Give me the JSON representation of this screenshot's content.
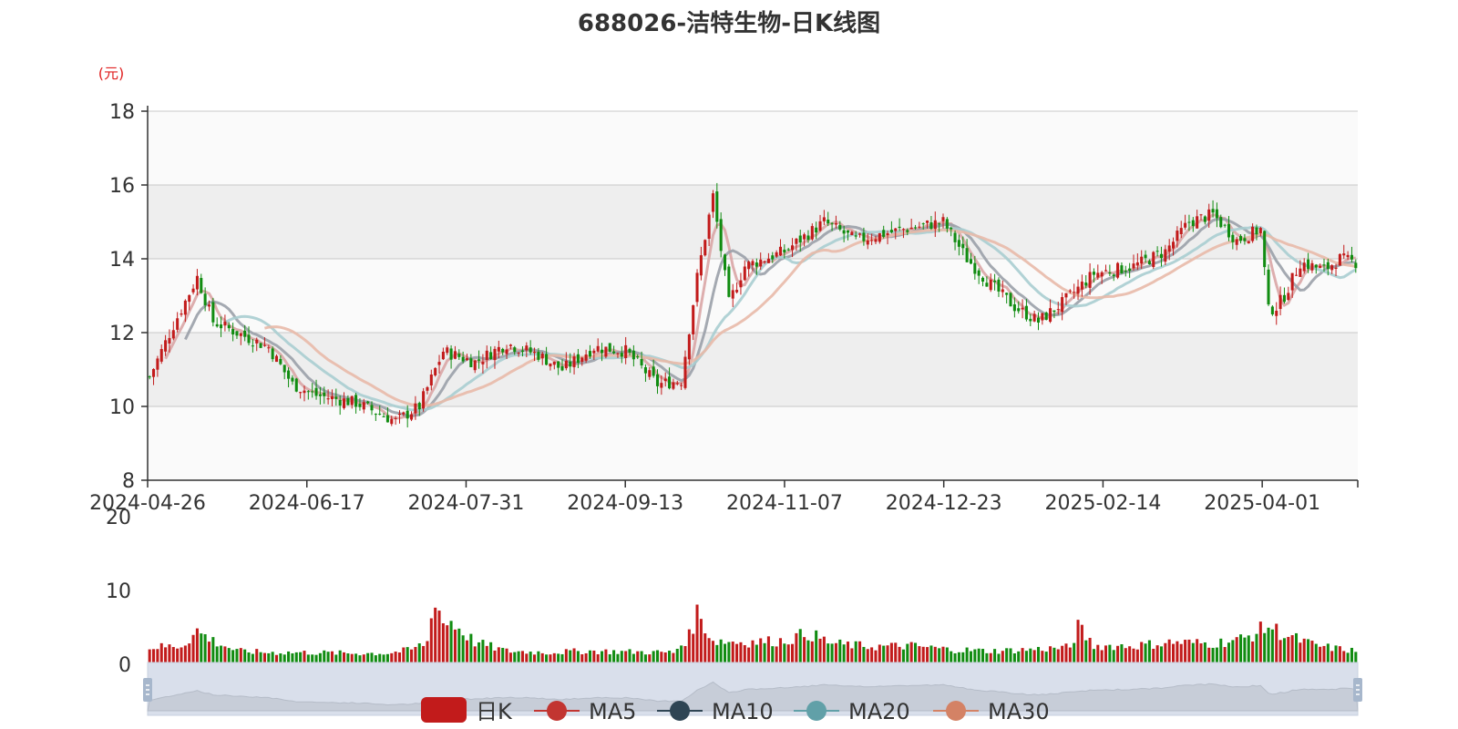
{
  "chart_data": {
    "type": "candlestick",
    "title": "688026-洁特生物-日K线图",
    "ylabel": "(元)",
    "price_axis": {
      "ylim": [
        8,
        18
      ],
      "ticks": [
        8,
        10,
        12,
        14,
        16,
        18
      ]
    },
    "volume_axis": {
      "ylim": [
        0,
        20
      ],
      "ticks": [
        0,
        10,
        20
      ]
    },
    "x_tick_labels": [
      "2024-04-26",
      "2024-06-17",
      "2024-07-31",
      "2024-09-13",
      "2024-11-07",
      "2024-12-23",
      "2025-02-14",
      "2025-04-01"
    ],
    "legend": [
      {
        "name": "日K",
        "color": "#c21b1b",
        "icon": "rounded-rect"
      },
      {
        "name": "MA5",
        "color": "#c23531",
        "icon": "circle-line"
      },
      {
        "name": "MA10",
        "color": "#2f4554",
        "icon": "circle-line"
      },
      {
        "name": "MA20",
        "color": "#61a0a8",
        "icon": "circle-line"
      },
      {
        "name": "MA30",
        "color": "#d48265",
        "icon": "circle-line"
      }
    ],
    "up_color": "#c21b1b",
    "down_color": "#118c11",
    "ma_colors": {
      "MA5": "#d9a5a5",
      "MA10": "#9aa0a8",
      "MA20": "#a8cdd0",
      "MA30": "#e8b9a8"
    },
    "close_path": [
      [
        0,
        10.8
      ],
      [
        6,
        12.2
      ],
      [
        12,
        13.5
      ],
      [
        16,
        12.3
      ],
      [
        22,
        12.0
      ],
      [
        30,
        11.6
      ],
      [
        36,
        10.6
      ],
      [
        42,
        10.3
      ],
      [
        52,
        10.1
      ],
      [
        58,
        9.8
      ],
      [
        62,
        9.6
      ],
      [
        68,
        10.0
      ],
      [
        74,
        11.5
      ],
      [
        82,
        11.2
      ],
      [
        90,
        11.7
      ],
      [
        98,
        11.4
      ],
      [
        104,
        11.0
      ],
      [
        112,
        11.6
      ],
      [
        120,
        11.5
      ],
      [
        128,
        10.6
      ],
      [
        134,
        10.7
      ],
      [
        138,
        13.5
      ],
      [
        142,
        15.7
      ],
      [
        146,
        12.8
      ],
      [
        150,
        13.8
      ],
      [
        160,
        14.2
      ],
      [
        170,
        15.0
      ],
      [
        178,
        14.5
      ],
      [
        190,
        14.8
      ],
      [
        200,
        15.0
      ],
      [
        206,
        14.0
      ],
      [
        212,
        13.3
      ],
      [
        218,
        12.7
      ],
      [
        224,
        12.3
      ],
      [
        230,
        12.8
      ],
      [
        238,
        13.6
      ],
      [
        248,
        13.8
      ],
      [
        256,
        14.2
      ],
      [
        262,
        15.0
      ],
      [
        268,
        15.2
      ],
      [
        274,
        14.5
      ],
      [
        280,
        14.8
      ],
      [
        282,
        12.6
      ],
      [
        284,
        12.7
      ],
      [
        286,
        13.0
      ],
      [
        290,
        13.9
      ],
      [
        296,
        13.7
      ],
      [
        300,
        14.0
      ],
      [
        304,
        13.9
      ]
    ],
    "volume_path": [
      [
        0,
        2.3
      ],
      [
        8,
        2.5
      ],
      [
        12,
        4.5
      ],
      [
        16,
        3.2
      ],
      [
        22,
        1.8
      ],
      [
        30,
        1.6
      ],
      [
        40,
        1.6
      ],
      [
        50,
        1.5
      ],
      [
        60,
        1.5
      ],
      [
        66,
        2.0
      ],
      [
        70,
        3.0
      ],
      [
        72,
        9.5
      ],
      [
        74,
        5.5
      ],
      [
        76,
        5.8
      ],
      [
        82,
        3.0
      ],
      [
        90,
        1.8
      ],
      [
        100,
        1.6
      ],
      [
        110,
        1.8
      ],
      [
        120,
        1.7
      ],
      [
        132,
        1.6
      ],
      [
        136,
        3.8
      ],
      [
        138,
        7.0
      ],
      [
        142,
        3.2
      ],
      [
        150,
        3.0
      ],
      [
        160,
        3.2
      ],
      [
        166,
        4.2
      ],
      [
        172,
        2.8
      ],
      [
        182,
        2.4
      ],
      [
        192,
        2.5
      ],
      [
        202,
        2.0
      ],
      [
        212,
        1.8
      ],
      [
        222,
        2.0
      ],
      [
        232,
        2.3
      ],
      [
        234,
        5.0
      ],
      [
        238,
        2.5
      ],
      [
        248,
        2.5
      ],
      [
        258,
        3.0
      ],
      [
        268,
        2.8
      ],
      [
        276,
        3.5
      ],
      [
        282,
        5.2
      ],
      [
        286,
        4.0
      ],
      [
        294,
        2.5
      ],
      [
        304,
        1.8
      ]
    ]
  }
}
